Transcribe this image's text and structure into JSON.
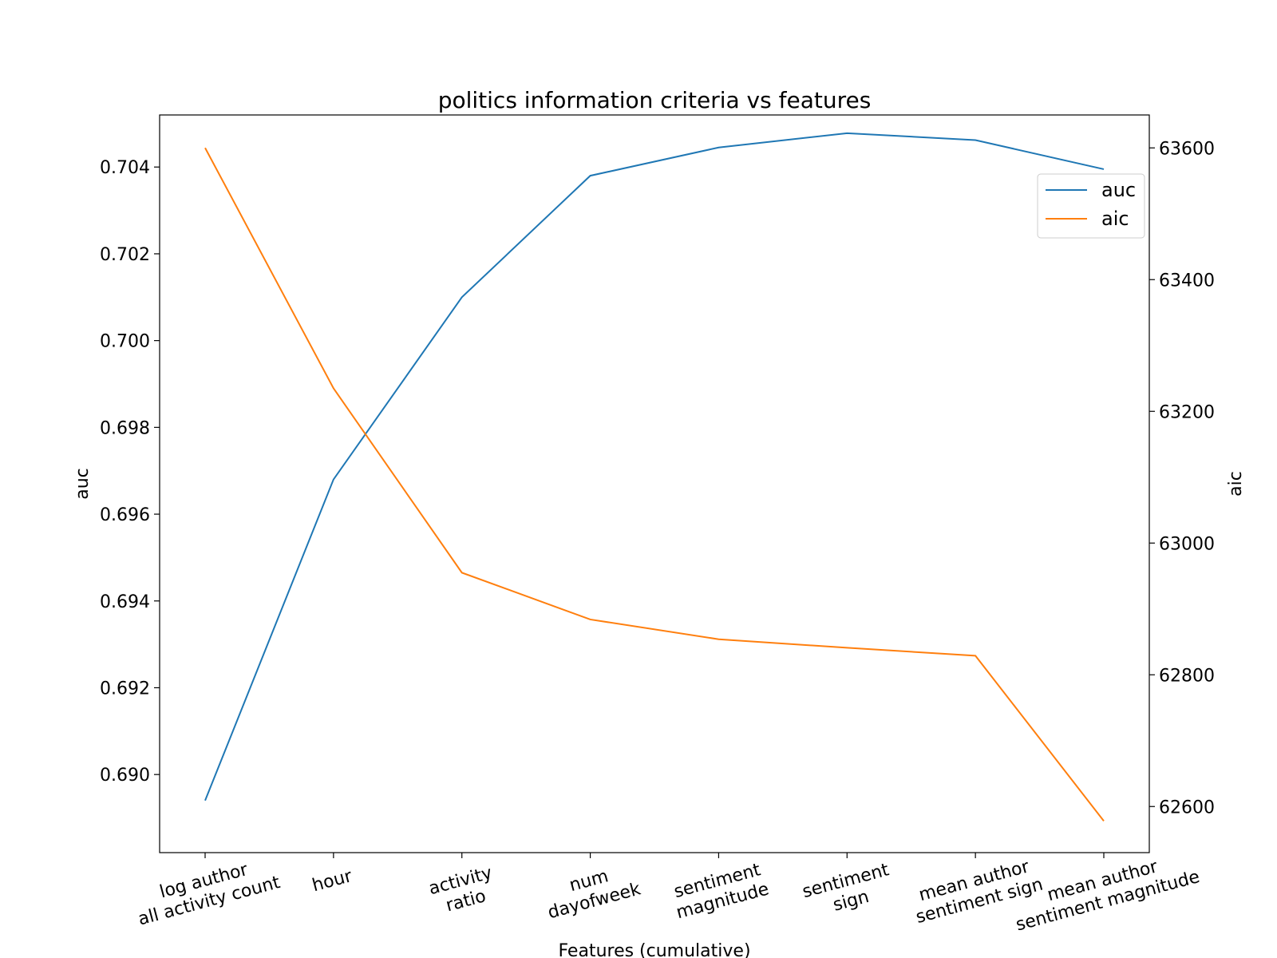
{
  "chart_data": {
    "type": "line",
    "title": "politics information criteria vs features",
    "xlabel": "Features (cumulative)",
    "ylabel_left": "auc",
    "ylabel_right": "aic",
    "categories": [
      "log author\nall activity count",
      "hour",
      "activity\nratio",
      "num\ndayofweek",
      "sentiment\nmagnitude",
      "sentiment\nsign",
      "mean author\nsentiment sign",
      "mean author\nsentiment magnitude"
    ],
    "series": [
      {
        "name": "auc",
        "axis": "left",
        "color": "#1f77b4",
        "values": [
          0.6894,
          0.6968,
          0.701,
          0.7038,
          0.70445,
          0.70478,
          0.70462,
          0.70395
        ]
      },
      {
        "name": "aic",
        "axis": "right",
        "color": "#ff7f0e",
        "values": [
          63600,
          63235,
          62955,
          62884,
          62854,
          62841,
          62829,
          62578
        ]
      }
    ],
    "ylim_left": [
      0.6882,
      0.7052
    ],
    "ylim_right": [
      62530,
      63650
    ],
    "yticks_left": [
      "0.690",
      "0.692",
      "0.694",
      "0.696",
      "0.698",
      "0.700",
      "0.702",
      "0.704"
    ],
    "yticks_right": [
      "62600",
      "62800",
      "63000",
      "63200",
      "63400",
      "63600"
    ],
    "legend": "upper-right",
    "grid": false
  }
}
